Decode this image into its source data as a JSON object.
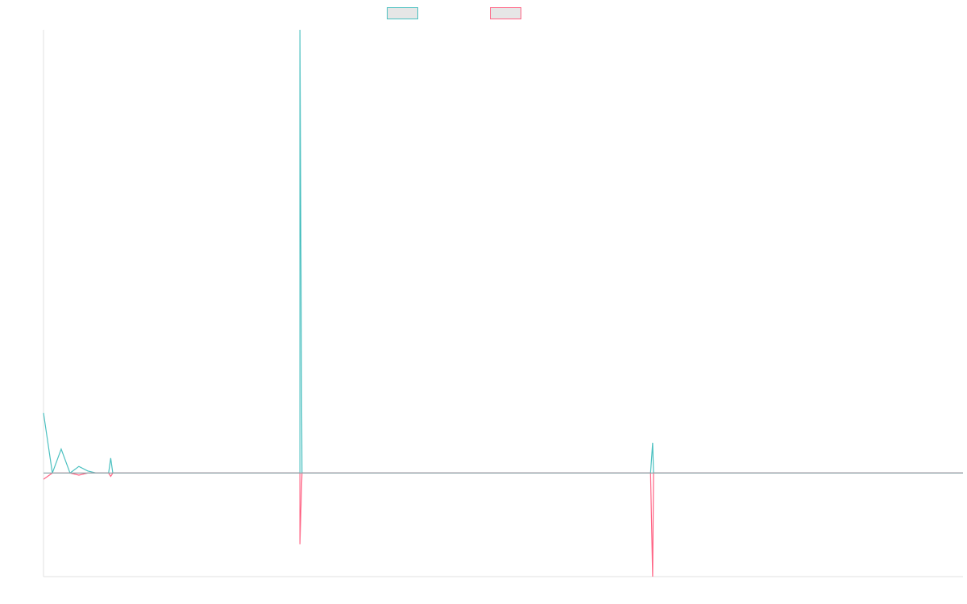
{
  "chart_data": {
    "type": "line",
    "title": "",
    "xlabel": "",
    "ylabel": "",
    "grid": false,
    "legend_placement": "top-center",
    "xlim": [
      0,
      104
    ],
    "ylim": [
      -250,
      1070
    ],
    "baseline": 0,
    "x": [
      0,
      1,
      2,
      3,
      4,
      5,
      6,
      7,
      8,
      9,
      10,
      11,
      12,
      13,
      14,
      15,
      16,
      17,
      18,
      19,
      20,
      21,
      22,
      23,
      24,
      25,
      26,
      27,
      28,
      29,
      30,
      31,
      32,
      33,
      34,
      35,
      36,
      37,
      38,
      39,
      40,
      41,
      42,
      43,
      44,
      45,
      46,
      47,
      48,
      49,
      50,
      51,
      52,
      53,
      54,
      55,
      56,
      57,
      58,
      59,
      60,
      61,
      62,
      63,
      64,
      65,
      66,
      67,
      68,
      69,
      70,
      71,
      72,
      73,
      74,
      75,
      76,
      77,
      78,
      79,
      80,
      81,
      82,
      83,
      84,
      85,
      86,
      87,
      88,
      89,
      90,
      91,
      92,
      93,
      94,
      95,
      96,
      97,
      98,
      99,
      100,
      101,
      102,
      103,
      104
    ],
    "series": [
      {
        "name": "",
        "color": "#4bc0c0",
        "values": [
          145,
          0,
          58,
          0,
          16,
          5,
          0,
          0,
          0,
          0,
          0,
          0,
          0,
          0,
          0,
          0,
          0,
          0,
          0,
          0,
          0,
          0,
          0,
          0,
          0,
          0,
          0,
          0,
          0,
          0,
          0,
          0,
          0,
          0,
          0,
          0,
          0,
          0,
          0,
          0,
          0,
          0,
          0,
          0,
          0,
          0,
          0,
          0,
          0,
          0,
          0,
          0,
          0,
          0,
          0,
          0,
          0,
          0,
          0,
          0,
          0,
          0,
          0,
          0,
          0,
          0,
          0,
          0,
          0,
          0,
          0,
          0,
          0,
          0,
          0,
          0,
          0,
          0,
          0,
          0,
          0,
          0,
          0,
          0,
          0,
          0,
          0,
          0,
          0,
          0,
          0,
          0,
          0,
          0,
          0,
          0,
          0,
          0,
          0,
          0,
          0,
          0,
          0,
          0,
          0
        ],
        "spikes": [
          {
            "x": 7.6,
            "y": 36
          },
          {
            "x": 29,
            "y": 1070
          },
          {
            "x": 68.9,
            "y": 73
          }
        ]
      },
      {
        "name": "",
        "color": "#ff6384",
        "values": [
          -15,
          0,
          0,
          0,
          -5,
          0,
          0,
          0,
          0,
          0,
          0,
          0,
          0,
          0,
          0,
          0,
          0,
          0,
          0,
          0,
          0,
          0,
          0,
          0,
          0,
          0,
          0,
          0,
          0,
          0,
          0,
          0,
          0,
          0,
          0,
          0,
          0,
          0,
          0,
          0,
          0,
          0,
          0,
          0,
          0,
          0,
          0,
          0,
          0,
          0,
          0,
          0,
          0,
          0,
          0,
          0,
          0,
          0,
          0,
          0,
          0,
          0,
          0,
          0,
          0,
          0,
          0,
          0,
          0,
          0,
          0,
          0,
          0,
          0,
          0,
          0,
          0,
          0,
          0,
          0,
          0,
          0,
          0,
          0,
          0,
          0,
          0,
          0,
          0,
          0,
          0,
          0,
          0,
          0,
          0,
          0,
          0,
          0,
          0,
          0,
          0,
          0,
          0,
          0,
          0
        ],
        "spikes": [
          {
            "x": 7.6,
            "y": -8
          },
          {
            "x": 29,
            "y": -172
          },
          {
            "x": 68.9,
            "y": -250
          }
        ]
      }
    ]
  }
}
